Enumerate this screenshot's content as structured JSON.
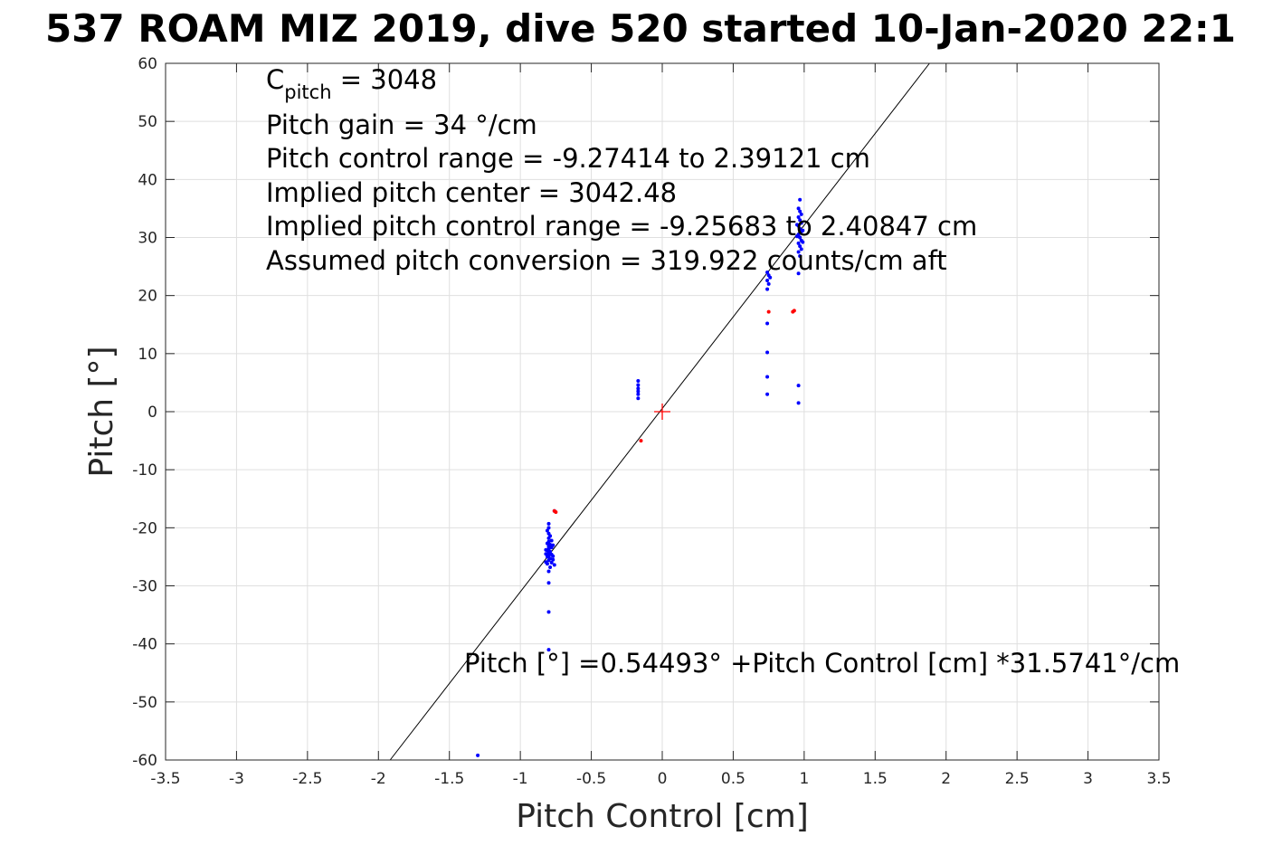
{
  "chart_data": {
    "type": "scatter",
    "title": "537 ROAM MIZ 2019, dive 520 started 10-Jan-2020 22:1",
    "xlabel": "Pitch Control [cm]",
    "ylabel": "Pitch [°]",
    "xlim": [
      -3.5,
      3.5
    ],
    "ylim": [
      -60,
      60
    ],
    "xticks": [
      -3.5,
      -3,
      -2.5,
      -2,
      -1.5,
      -1,
      -0.5,
      0,
      0.5,
      1,
      1.5,
      2,
      2.5,
      3,
      3.5
    ],
    "yticks": [
      60,
      50,
      40,
      30,
      20,
      10,
      0,
      -10,
      -20,
      -30,
      -40,
      -50,
      -60
    ],
    "xtick_labels": [
      "-3.5",
      "-3",
      "-2.5",
      "-2",
      "-1.5",
      "-1",
      "-0.5",
      "0",
      "0.5",
      "1",
      "1.5",
      "2",
      "2.5",
      "3",
      "3.5"
    ],
    "ytick_labels": [
      "60",
      "50",
      "40",
      "30",
      "20",
      "10",
      "0",
      "-10",
      "-20",
      "-30",
      "-40",
      "-50",
      "-60"
    ],
    "grid": true,
    "colors": {
      "blue_points": "#0000ff",
      "red_points": "#ff0000",
      "fit_line": "#000000",
      "center_marker": "#ff0000"
    },
    "annotations": {
      "c_pitch_base": "C",
      "c_pitch_sub": "pitch",
      "c_pitch_rest": " = 3048",
      "pitch_gain": "Pitch gain = 34 °/cm",
      "control_range": "Pitch control range = -9.27414 to 2.39121 cm",
      "implied_center": "Implied pitch center = 3042.48",
      "implied_range": "Implied pitch control range = -9.25683 to 2.40847 cm",
      "conversion": "Assumed pitch conversion = 319.922 counts/cm aft",
      "fit_equation": "Pitch [°] =0.54493° +Pitch Control [cm] *31.5741°/cm"
    },
    "fit_line": {
      "intercept": 0.54493,
      "slope": 31.5741
    },
    "center_marker": {
      "x": 0,
      "y": 0
    },
    "series": [
      {
        "color": "#0000ff",
        "points": [
          [
            -1.3,
            -59.2
          ],
          [
            -0.8,
            -41
          ],
          [
            -0.8,
            -34.5
          ],
          [
            -0.8,
            -29.5
          ],
          [
            -0.8,
            -27.5
          ],
          [
            -0.79,
            -26.8
          ],
          [
            -0.81,
            -26.2
          ],
          [
            -0.78,
            -26
          ],
          [
            -0.8,
            -25.6
          ],
          [
            -0.79,
            -25.3
          ],
          [
            -0.81,
            -25
          ],
          [
            -0.8,
            -24.8
          ],
          [
            -0.78,
            -24.6
          ],
          [
            -0.8,
            -24.3
          ],
          [
            -0.79,
            -24.1
          ],
          [
            -0.81,
            -23.9
          ],
          [
            -0.8,
            -23.6
          ],
          [
            -0.78,
            -23.4
          ],
          [
            -0.8,
            -23.2
          ],
          [
            -0.79,
            -22.9
          ],
          [
            -0.81,
            -22.7
          ],
          [
            -0.8,
            -22.4
          ],
          [
            -0.78,
            -22.2
          ],
          [
            -0.8,
            -21.8
          ],
          [
            -0.79,
            -21.4
          ],
          [
            -0.8,
            -21
          ],
          [
            -0.81,
            -20.5
          ],
          [
            -0.8,
            -20
          ],
          [
            -0.8,
            -19.3
          ],
          [
            -0.77,
            -25.5
          ],
          [
            -0.77,
            -24.9
          ],
          [
            -0.82,
            -24.5
          ],
          [
            -0.82,
            -23.8
          ],
          [
            -0.77,
            -23
          ],
          [
            -0.76,
            -26.4
          ],
          [
            -0.82,
            -25.9
          ],
          [
            -0.76,
            -17.1
          ],
          [
            -0.17,
            5.3
          ],
          [
            -0.17,
            4.6
          ],
          [
            -0.17,
            4.0
          ],
          [
            -0.17,
            3.5
          ],
          [
            -0.17,
            3.0
          ],
          [
            -0.17,
            2.3
          ],
          [
            0.74,
            3.0
          ],
          [
            0.74,
            6.0
          ],
          [
            0.74,
            10.2
          ],
          [
            0.74,
            15.2
          ],
          [
            0.74,
            21.1
          ],
          [
            0.75,
            22.0
          ],
          [
            0.74,
            22.6
          ],
          [
            0.76,
            23.1
          ],
          [
            0.75,
            23.5
          ],
          [
            0.74,
            24.0
          ],
          [
            0.96,
            1.5
          ],
          [
            0.96,
            4.5
          ],
          [
            0.96,
            23.8
          ],
          [
            0.97,
            26.8
          ],
          [
            0.96,
            27.5
          ],
          [
            0.98,
            28.0
          ],
          [
            0.97,
            28.5
          ],
          [
            0.96,
            29.0
          ],
          [
            0.98,
            29.5
          ],
          [
            0.97,
            30.0
          ],
          [
            0.96,
            30.5
          ],
          [
            0.98,
            31.0
          ],
          [
            0.97,
            31.5
          ],
          [
            0.96,
            32.0
          ],
          [
            0.98,
            32.5
          ],
          [
            0.97,
            33.0
          ],
          [
            0.96,
            33.5
          ],
          [
            0.98,
            34.0
          ],
          [
            0.97,
            34.5
          ],
          [
            0.96,
            35.0
          ],
          [
            0.97,
            36.5
          ],
          [
            0.99,
            29.2
          ],
          [
            0.99,
            31.2
          ],
          [
            0.95,
            30.2
          ],
          [
            0.95,
            32.2
          ]
        ]
      },
      {
        "color": "#ff0000",
        "points": [
          [
            -0.75,
            -17.3
          ],
          [
            -0.76,
            -17.1
          ],
          [
            -0.15,
            -5.0
          ],
          [
            0.75,
            17.2
          ],
          [
            0.92,
            17.2
          ],
          [
            0.93,
            17.4
          ]
        ]
      }
    ]
  }
}
